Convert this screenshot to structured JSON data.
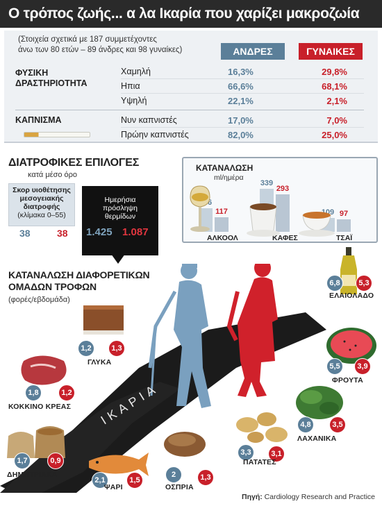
{
  "title": "Ο τρόπος ζωής... α λα Ικαρία που χαρίζει μακροζωία",
  "note": [
    "(Στοιχεία σχετικά με 187 συμμετέχοντες",
    "άνω των 80 ετών – 89 άνδρες και 98 γυναίκες)"
  ],
  "headers": {
    "men": "ΑΝΔΡΕΣ",
    "women": "ΓΥΝΑΙΚΕΣ"
  },
  "lifestyle": {
    "activity_label": [
      "ΦΥΣΙΚΗ",
      "ΔΡΑΣΤΗΡΙΟΤΗΤΑ"
    ],
    "activity_rows": [
      {
        "label": "Χαμηλή",
        "men": "16,3%",
        "women": "29,8%"
      },
      {
        "label": "Ηπια",
        "men": "66,6%",
        "women": "68,1%"
      },
      {
        "label": "Υψηλή",
        "men": "22,1%",
        "women": "2,1%"
      }
    ],
    "smoking_label": "ΚΑΠΝΙΣΜΑ",
    "smoking_rows": [
      {
        "label": "Νυν καπνιστές",
        "men": "17,0%",
        "women": "7,0%"
      },
      {
        "label": "Πρώην καπνιστές",
        "men": "82,0%",
        "women": "25,0%"
      }
    ]
  },
  "diet": {
    "title": "ΔΙΑΤΡΟΦΙΚΕΣ ΕΠΙΛΟΓΕΣ",
    "subtitle": "κατά μέσο όρο",
    "score_title": [
      "Σκορ υιοθέτησης",
      "μεσογειακής",
      "διατροφής",
      "(κλίμακα 0–55)"
    ],
    "score_men": "38",
    "score_women": "38",
    "calories_title": [
      "Ημερήσια",
      "πρόσληψη",
      "θερμίδων"
    ],
    "calories_men": "1.425",
    "calories_women": "1.087"
  },
  "consumption": {
    "title": "ΚΑΤΑΝΑΛΩΣΗ",
    "unit": "ml/ημέρα",
    "drinks": [
      {
        "label": "ΑΛΚΟΟΛ",
        "men": "186",
        "women": "117"
      },
      {
        "label": "ΚΑΦΕΣ",
        "men": "339",
        "women": "293"
      },
      {
        "label": "ΤΣΑΪ",
        "men": "109",
        "women": "97"
      }
    ]
  },
  "foods_title": [
    "ΚΑΤΑΝΑΛΩΣΗ ΔΙΑΦΟΡΕΤΙΚΩΝ",
    "ΟΜΑΔΩΝ ΤΡΟΦΩΝ"
  ],
  "foods_sub": "(φορές/εβδομάδα)",
  "road_label": "ΙΚΑΡΙΑ",
  "source_label": "Πηγή:",
  "source_value": "Cardiology Research and Practice",
  "colors": {
    "men": "#5b7f99",
    "women": "#c8202a",
    "title_bg": "#2a2a2a"
  },
  "chart_data": [
    {
      "type": "bar",
      "title": "ΚΑΤΑΝΑΛΩΣΗ",
      "ylabel": "ml/ημέρα",
      "categories": [
        "ΑΛΚΟΟΛ",
        "ΚΑΦΕΣ",
        "ΤΣΑΪ"
      ],
      "series": [
        {
          "name": "ΑΝΔΡΕΣ",
          "values": [
            186,
            339,
            109
          ]
        },
        {
          "name": "ΓΥΝΑΙΚΕΣ",
          "values": [
            117,
            293,
            97
          ]
        }
      ]
    },
    {
      "type": "table",
      "title": "ΚΑΤΑΝΑΛΩΣΗ ΔΙΑΦΟΡΕΤΙΚΩΝ ΟΜΑΔΩΝ ΤΡΟΦΩΝ",
      "ylabel": "(φορές/εβδομάδα)",
      "categories": [
        "ΓΛΥΚΑ",
        "ΚΟΚΚΙΝΟ ΚΡΕΑΣ",
        "ΔΗΜΗΤΡΙΑΚΑ",
        "ΨΑΡΙ",
        "ΟΣΠΡΙΑ",
        "ΠΑΤΑΤΕΣ",
        "ΛΑΧΑΝΙΚΑ",
        "ΦΡΟΥΤΑ",
        "ΕΛΑΙΟΛΑΔΟ"
      ],
      "series": [
        {
          "name": "ΑΝΔΡΕΣ",
          "values": [
            "1,2",
            "1,8",
            "1,7",
            "2,1",
            "2",
            "3,3",
            "4,8",
            "5,5",
            "6,8"
          ]
        },
        {
          "name": "ΓΥΝΑΙΚΕΣ",
          "values": [
            "1,3",
            "1,2",
            "0,9",
            "1,5",
            "1,3",
            "3,1",
            "3,5",
            "3,9",
            "5,3"
          ]
        }
      ]
    }
  ],
  "food_icons": {
    "ΓΛΥΚΑ": "cake-icon",
    "ΚΟΚΚΙΝΟ ΚΡΕΑΣ": "meat-icon",
    "ΔΗΜΗΤΡΙΑΚΑ": "grain-sacks-icon",
    "ΨΑΡΙ": "fish-icon",
    "ΟΣΠΡΙΑ": "beans-icon",
    "ΠΑΤΑΤΕΣ": "potatoes-icon",
    "ΛΑΧΑΝΙΚΑ": "greens-icon",
    "ΦΡΟΥΤΑ": "watermelon-icon",
    "ΕΛΑΙΟΛΑΔΟ": "olive-oil-bottle-icon"
  }
}
